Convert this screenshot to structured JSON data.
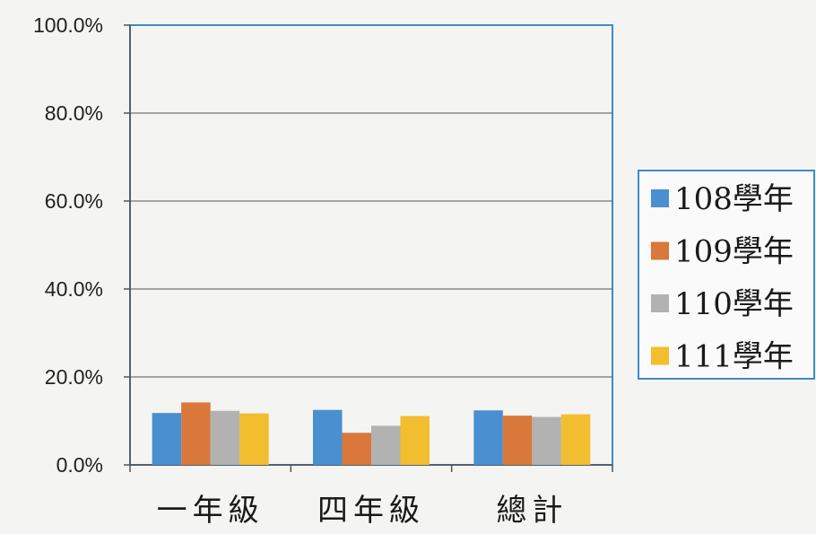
{
  "chart_data": {
    "type": "bar",
    "title": "",
    "xlabel": "",
    "ylabel": "",
    "ylim": [
      0,
      100
    ],
    "yticks": [
      "0.0%",
      "20.0%",
      "40.0%",
      "60.0%",
      "80.0%",
      "100.0%"
    ],
    "grid": true,
    "legend_position": "right",
    "categories": [
      "一年級",
      "四年級",
      "總計"
    ],
    "series": [
      {
        "name": "108學年",
        "color": "#4a8fcf",
        "values": [
          11.8,
          12.5,
          12.4
        ]
      },
      {
        "name": "109學年",
        "color": "#d9783a",
        "values": [
          14.2,
          7.3,
          11.2
        ]
      },
      {
        "name": "110學年",
        "color": "#b2b2b2",
        "values": [
          12.3,
          8.9,
          10.9
        ]
      },
      {
        "name": "111學年",
        "color": "#f2bd2e",
        "values": [
          11.7,
          11.1,
          11.5
        ]
      }
    ]
  }
}
